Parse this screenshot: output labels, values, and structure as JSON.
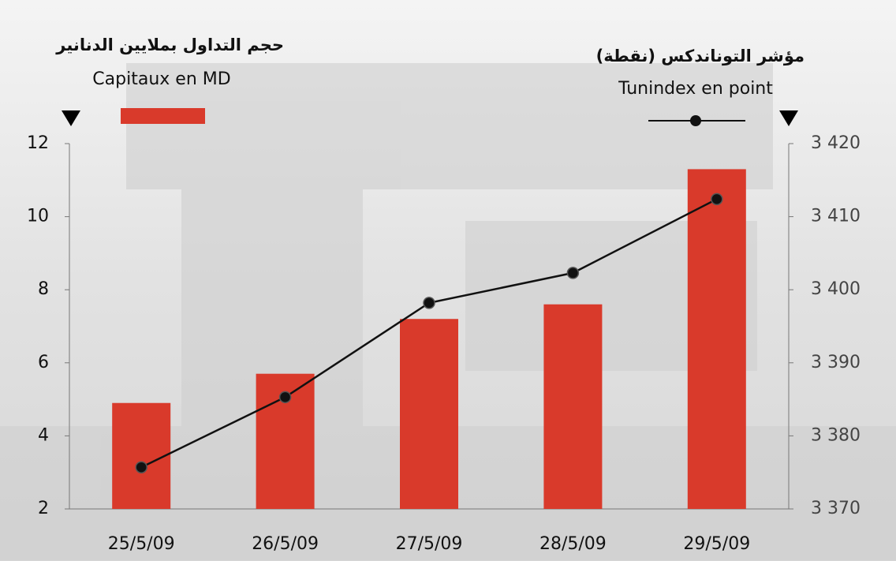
{
  "chart_data": {
    "type": "bar_line",
    "ylabel": "حجم التداول بملايين الدنانير",
    "y2label": "مؤشر التوناندكس (نقطة)",
    "categories": [
      "25/5/09",
      "26/5/09",
      "27/5/09",
      "28/5/09",
      "29/5/09"
    ],
    "series": [
      {
        "name": "Capitaux en MD",
        "type": "bar",
        "color": "#d93a2b",
        "values": [
          4.9,
          5.7,
          7.2,
          7.6,
          11.3
        ]
      },
      {
        "name": "Tunindex en point",
        "type": "line",
        "axis": "y2",
        "color": "#111111",
        "values": [
          3375.7,
          3385.3,
          3398.2,
          3402.3,
          3412.4
        ]
      }
    ],
    "ylim": [
      2,
      12
    ],
    "yticks": [
      2,
      4,
      6,
      8,
      10,
      12
    ],
    "y2lim": [
      3370,
      3420
    ],
    "y2ticks": [
      {
        "value": 3370,
        "label": "3 370"
      },
      {
        "value": 3380,
        "label": "3 380"
      },
      {
        "value": 3390,
        "label": "3 390"
      },
      {
        "value": 3400,
        "label": "3 400"
      },
      {
        "value": 3410,
        "label": "3 410"
      },
      {
        "value": 3420,
        "label": "3 420"
      }
    ]
  }
}
